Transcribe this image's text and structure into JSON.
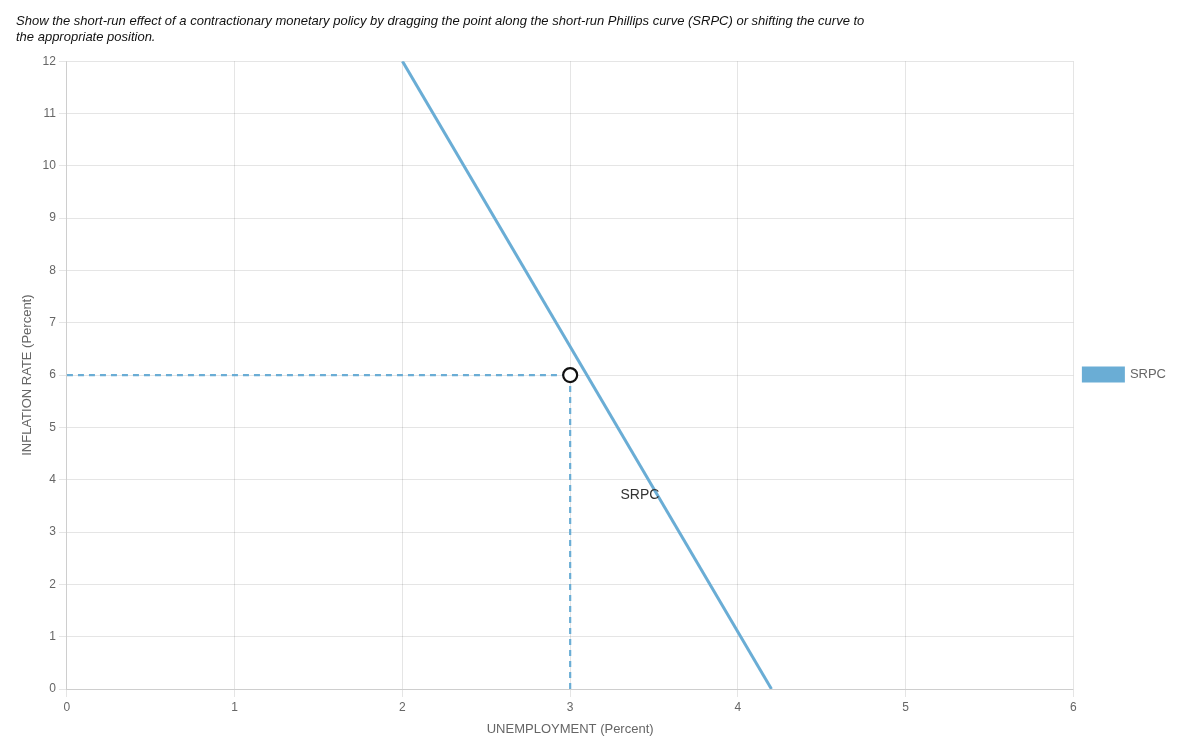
{
  "chart_data": {
    "type": "line",
    "title": [
      "Show the short-run effect of a contractionary monetary policy by dragging the point along the short-run Phillips curve (SRPC) or shifting the curve to",
      "the appropriate position."
    ],
    "x_label": "UNEMPLOYMENT (Percent)",
    "y_label": "INFLATION RATE (Percent)",
    "xlim": [
      0,
      6
    ],
    "ylim": [
      0,
      12
    ],
    "xticks": [
      0,
      1,
      2,
      3,
      4,
      5,
      6
    ],
    "yticks": [
      0,
      1,
      2,
      3,
      4,
      5,
      6,
      7,
      8,
      9,
      10,
      11,
      12
    ],
    "grid": true,
    "legend": "right",
    "series": [
      {
        "name": "SRPC",
        "type": "line",
        "color": "#6aadd5",
        "line_style": "solid",
        "x": [
          2.0,
          4.2
        ],
        "values": [
          12.0,
          0.0
        ]
      }
    ],
    "point": {
      "x": 3.0,
      "y": 6.0,
      "color": "#ffffff",
      "marker": "circle"
    },
    "guides": {
      "color": "#6aadd5",
      "line_style": "dashed"
    },
    "annotations": [
      {
        "text": "SRPC",
        "x": 3.3,
        "y": 3.7
      }
    ]
  }
}
